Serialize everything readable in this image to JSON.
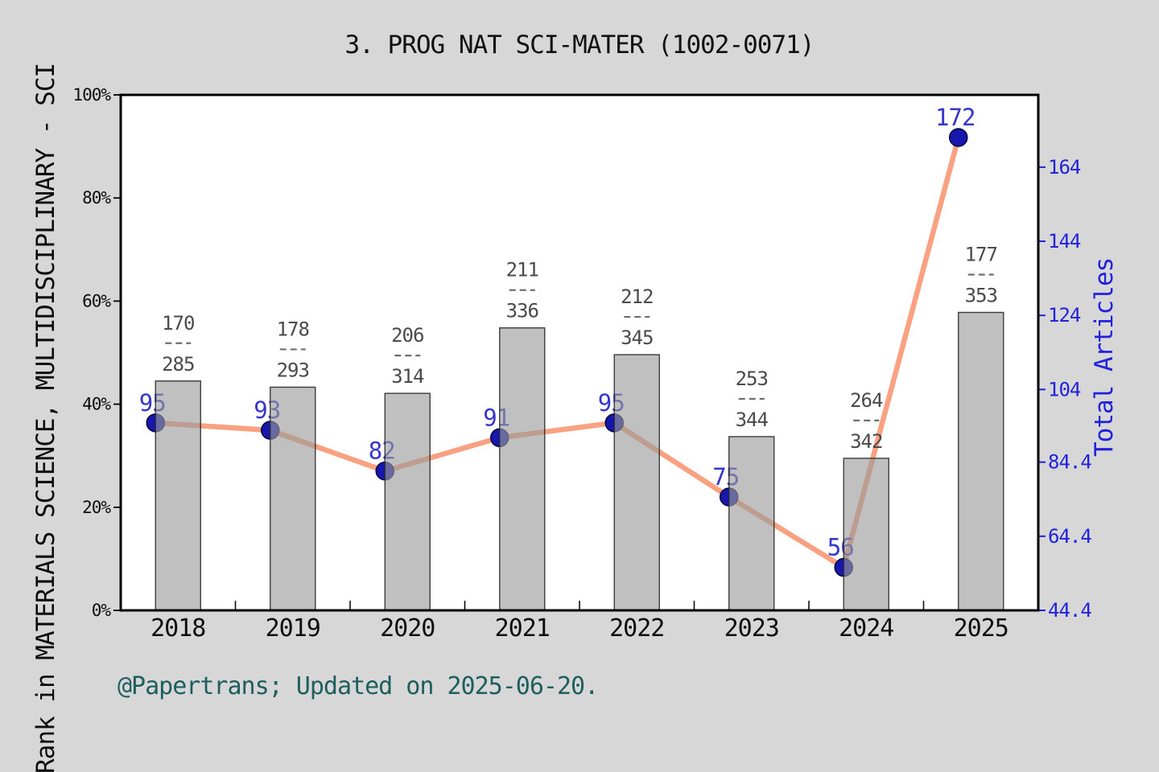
{
  "title": "3. PROG NAT SCI-MATER (1002-0071)",
  "footer": {
    "text": "@Papertrans; Updated on 2025-06-20."
  },
  "colors": {
    "page_bg": "#d7d7d7",
    "plot_bg": "#ffffff",
    "plot_border": "#000000",
    "bar_fill": "#9b9b9b",
    "bar_edge": "#2a2a2a",
    "line": "#f9a181",
    "marker_fill": "#1717ae",
    "marker_edge": "#00003a",
    "value_label": "#3535cc",
    "fraction_label": "#4a4a4a",
    "right_axis_blue": "#2222dd",
    "left_axis_black": "#0d0d0d",
    "footer_teal": "#1e5e5e"
  },
  "chart_data": {
    "type": "bar+line",
    "title": "3. PROG NAT SCI-MATER (1002-0071)",
    "categories": [
      "2018",
      "2019",
      "2020",
      "2021",
      "2022",
      "2023",
      "2024",
      "2025"
    ],
    "series": [
      {
        "name": "rank-fraction-bars",
        "type": "bar",
        "axis": "left",
        "bar_percent": [
          44.5,
          43.3,
          42.1,
          54.8,
          49.6,
          33.7,
          29.5,
          57.8
        ],
        "fraction_numerators": [
          170,
          178,
          206,
          211,
          212,
          253,
          264,
          177
        ],
        "fraction_denominators": [
          285,
          293,
          314,
          336,
          345,
          344,
          342,
          353
        ]
      },
      {
        "name": "Total Articles",
        "type": "line",
        "axis": "right",
        "values": [
          95,
          93,
          82,
          91,
          95,
          75,
          56,
          172
        ]
      }
    ],
    "left_axis": {
      "label": "Rank in MATERIALS SCIENCE, MULTIDISCIPLINARY - SCI",
      "tick_labels": [
        "0%",
        "20%",
        "40%",
        "60%",
        "80%",
        "100%"
      ],
      "tick_values": [
        0,
        20,
        40,
        60,
        80,
        100
      ],
      "range": [
        0,
        100
      ]
    },
    "right_axis": {
      "label": "Total Articles",
      "tick_labels": [
        "44.4",
        "64.4",
        "84.4",
        "104",
        "124",
        "144",
        "164"
      ],
      "tick_values": [
        44.4,
        64.4,
        84.4,
        104,
        124,
        144,
        164
      ],
      "range": [
        44.4,
        183.5
      ]
    },
    "grid": false,
    "legend": "none"
  }
}
